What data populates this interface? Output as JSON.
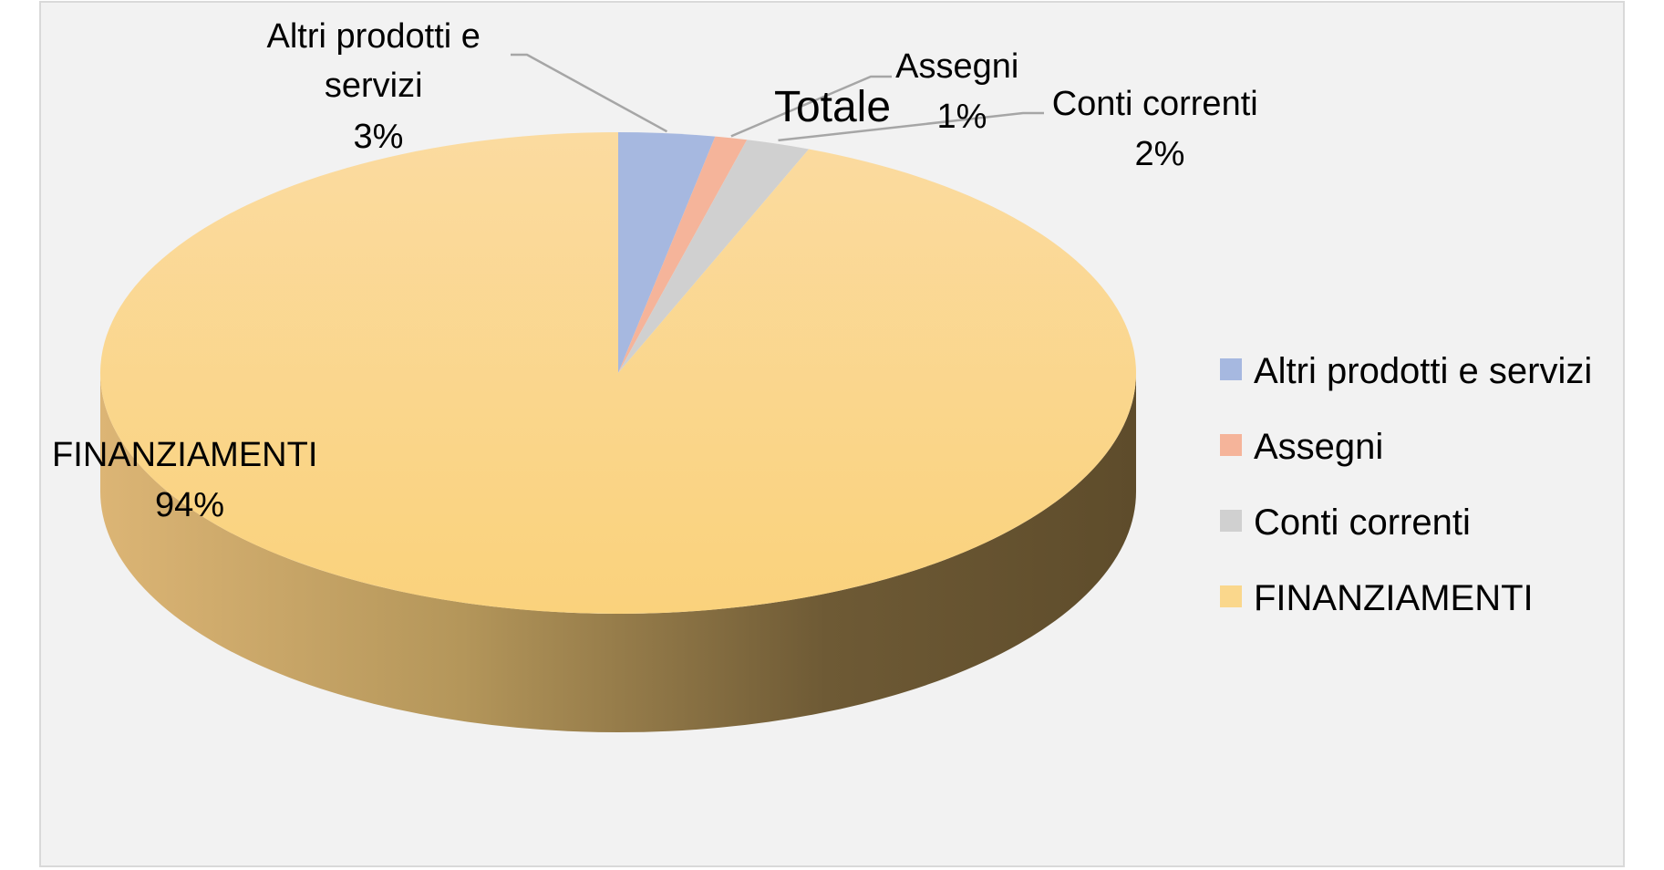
{
  "chart_data": {
    "type": "pie",
    "style": "3d",
    "title": "Totale",
    "categories": [
      "Altri prodotti e servizi",
      "Assegni",
      "Conti correnti",
      "FINANZIAMENTI"
    ],
    "values": [
      3,
      1,
      2,
      94
    ],
    "unit": "%",
    "colors": [
      "#a6b8e0",
      "#f5b49a",
      "#d0d0d0",
      "#fad78c"
    ],
    "legend_position": "right",
    "data_labels": [
      {
        "lines": [
          "Altri prodotti e",
          "servizi",
          "3%"
        ]
      },
      {
        "lines": [
          "Assegni",
          "1%"
        ]
      },
      {
        "lines": [
          "Conti correnti",
          "2%"
        ]
      },
      {
        "lines": [
          "FINANZIAMENTI",
          "94%"
        ]
      }
    ]
  }
}
